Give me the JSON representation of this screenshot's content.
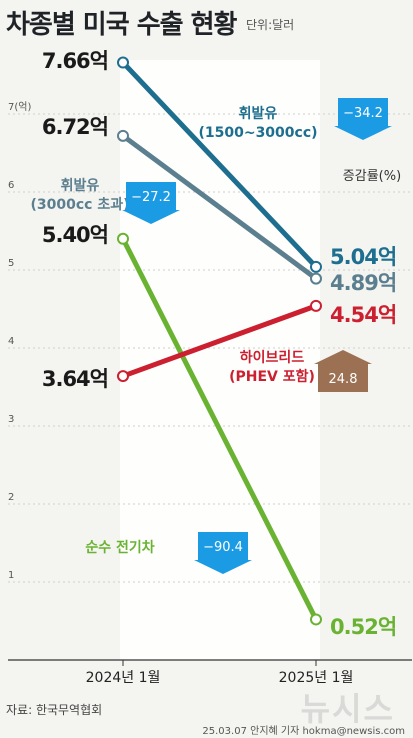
{
  "header": {
    "title": "차종별 미국 수출 현황",
    "unit": "단위:달러"
  },
  "footer": {
    "source": "자료: 한국무역협회",
    "byline": "25.03.07 안지혜 기자 hokma@newsis.com",
    "watermark": "뉴시스"
  },
  "chart_data": {
    "type": "line",
    "x": [
      "2024년 1월",
      "2025년 1월"
    ],
    "ylim": [
      0,
      8
    ],
    "y_ticks": [
      "1",
      "2",
      "3",
      "4",
      "5",
      "6",
      "7(억)"
    ],
    "series": [
      {
        "name": "휘발유 (1500~3000cc)",
        "values": [
          7.66,
          5.04
        ],
        "labels": [
          "7.66억",
          "5.04억"
        ],
        "change": "−34.2",
        "color": "#1d6e8f"
      },
      {
        "name": "휘발유 (3000cc 초과)",
        "values": [
          6.72,
          4.89
        ],
        "labels": [
          "6.72억",
          "4.89억"
        ],
        "change": "−27.2",
        "color": "#5c7f8f"
      },
      {
        "name": "순수 전기차",
        "values": [
          5.4,
          0.52
        ],
        "labels": [
          "5.40억",
          "0.52억"
        ],
        "change": "−90.4",
        "color": "#6ab332"
      },
      {
        "name": "하이브리드 (PHEV 포함)",
        "values": [
          3.64,
          4.54
        ],
        "labels": [
          "3.64억",
          "4.54억"
        ],
        "change": "24.8",
        "color": "#cc1f2f"
      }
    ],
    "change_label": "증감률(%)",
    "colors": {
      "decrease_arrow": "#1a9be4",
      "increase_arrow": "#9c7052"
    }
  }
}
